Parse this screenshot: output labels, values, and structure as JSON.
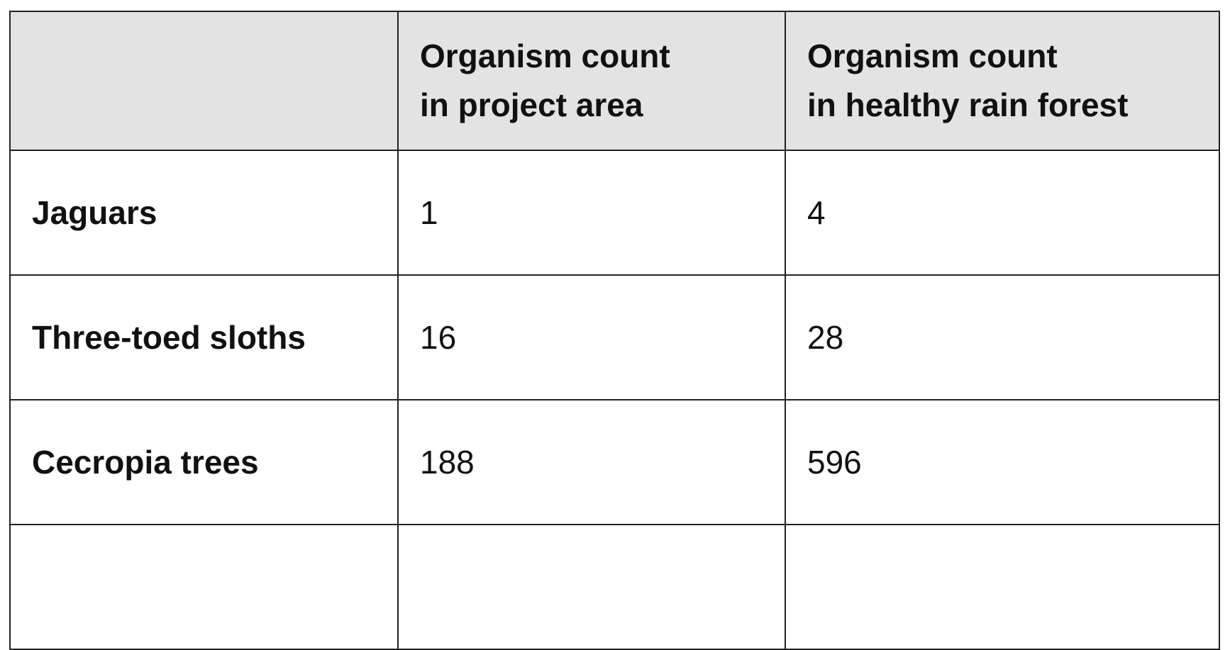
{
  "table": {
    "headers": [
      [
        "Organism count",
        "in project area"
      ],
      [
        "Organism count",
        "in healthy rain forest"
      ]
    ],
    "rows": [
      {
        "label": "Jaguars",
        "values": [
          1,
          4
        ]
      },
      {
        "label": "Three-toed sloths",
        "values": [
          16,
          28
        ]
      },
      {
        "label": "Cecropia trees",
        "values": [
          188,
          596
        ]
      }
    ]
  }
}
